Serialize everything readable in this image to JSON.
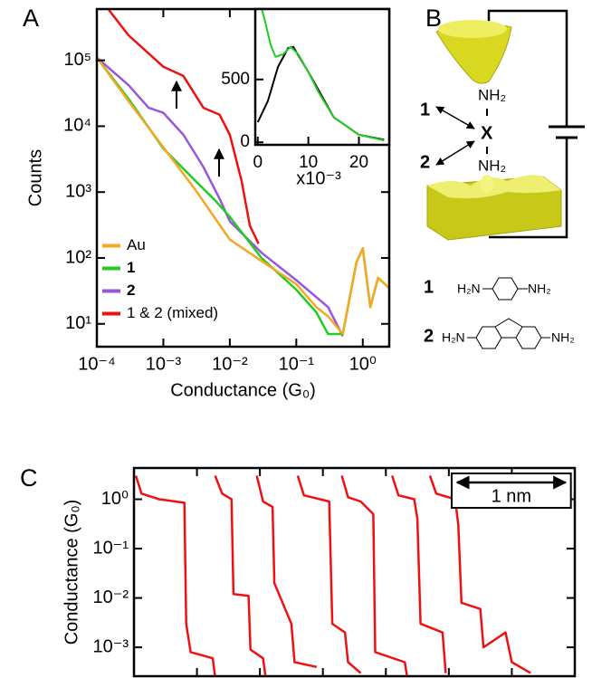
{
  "chart_data": [
    {
      "type": "line",
      "panel_label": "A",
      "xlabel": "Conductance (G₀)",
      "ylabel": "Counts",
      "xscale": "log",
      "yscale": "log",
      "xlim": [
        0.0001,
        2.5
      ],
      "ylim": [
        4.5,
        600000
      ],
      "xticks": [
        {
          "value": 0.0001,
          "label": "10⁻⁴"
        },
        {
          "value": 0.001,
          "label": "10⁻³"
        },
        {
          "value": 0.01,
          "label": "10⁻²"
        },
        {
          "value": 0.1,
          "label": "10⁻¹"
        },
        {
          "value": 1,
          "label": "10⁰"
        }
      ],
      "yticks": [
        {
          "value": 10,
          "label": "10¹"
        },
        {
          "value": 100,
          "label": "10²"
        },
        {
          "value": 1000,
          "label": "10³"
        },
        {
          "value": 10000,
          "label": "10⁴"
        },
        {
          "value": 100000,
          "label": "10⁵"
        }
      ],
      "legend": "lower left",
      "series": [
        {
          "name": "Au",
          "color": "#f5a623",
          "x": [
            0.0001,
            0.0003,
            0.001,
            0.003,
            0.01,
            0.03,
            0.1,
            0.2,
            0.3,
            0.5,
            0.8,
            1,
            1.3,
            1.7,
            2.5
          ],
          "values": [
            110000,
            24000,
            4800,
            1100,
            190,
            90,
            40,
            18,
            13,
            7,
            85,
            140,
            18,
            50,
            35
          ]
        },
        {
          "name": "1",
          "color": "#22cc22",
          "x": [
            0.0001,
            0.0003,
            0.001,
            0.003,
            0.006,
            0.01,
            0.03,
            0.1,
            0.2,
            0.3,
            0.5,
            0.8,
            1,
            1.3,
            1.7,
            2.5
          ],
          "values": [
            110000,
            26000,
            4600,
            1500,
            750,
            420,
            100,
            33,
            15,
            7,
            7,
            85,
            140,
            18,
            50,
            35
          ]
        },
        {
          "name": "2",
          "color": "#9955dd",
          "x": [
            0.0001,
            0.0003,
            0.0006,
            0.001,
            0.002,
            0.004,
            0.007,
            0.01,
            0.03,
            0.1,
            0.3,
            0.5
          ],
          "values": [
            110000,
            42000,
            19000,
            16000,
            7400,
            2400,
            800,
            360,
            120,
            46,
            18,
            6.5
          ]
        },
        {
          "name": "1 & 2 (mixed)",
          "color": "#ee1111",
          "x": [
            0.00015,
            0.0003,
            0.001,
            0.002,
            0.004,
            0.007,
            0.01,
            0.015,
            0.02,
            0.027
          ],
          "values": [
            590000,
            240000,
            80000,
            58000,
            19000,
            15000,
            7400,
            1500,
            310,
            165
          ]
        }
      ]
    },
    {
      "type": "line",
      "inset": true,
      "xlabel": "x10⁻³",
      "xlim": [
        -0.5,
        26
      ],
      "ylim": [
        -20,
        1060
      ],
      "xticks": [
        0,
        10,
        20
      ],
      "yticks": [
        0,
        500
      ],
      "series": [
        {
          "color": "#22cc22",
          "x": [
            0.8,
            1.5,
            2.5,
            3.5,
            5,
            6.5,
            8,
            10,
            12,
            15,
            20,
            25
          ],
          "values": [
            1060,
            950,
            780,
            680,
            700,
            760,
            700,
            560,
            400,
            200,
            60,
            15
          ]
        },
        {
          "color": "#000000",
          "x": [
            0,
            2,
            4,
            6,
            7,
            10,
            15,
            20,
            25
          ],
          "values": [
            160,
            330,
            600,
            750,
            760,
            560,
            200,
            60,
            20
          ]
        }
      ]
    },
    {
      "type": "line",
      "panel_label": "C",
      "ylabel": "Conductance (G₀)",
      "yscale": "log",
      "xlim": [
        0,
        7
      ],
      "ylim": [
        0.00026,
        4.3
      ],
      "xticks": [
        1,
        2,
        3,
        4,
        5,
        6
      ],
      "xtick_labels": false,
      "yticks": [
        {
          "value": 0.001,
          "label": "10⁻³"
        },
        {
          "value": 0.01,
          "label": "10⁻²"
        },
        {
          "value": 0.1,
          "label": "10⁻¹"
        },
        {
          "value": 1,
          "label": "10⁰"
        }
      ],
      "scale_bar": {
        "label": "1 nm",
        "length": 1.72
      },
      "series": [
        {
          "color": "#ee1111",
          "x": [
            0.03,
            0.12,
            0.4,
            0.8,
            0.83,
            0.9,
            1.25,
            1.3
          ],
          "values": [
            3,
            1.3,
            1.0,
            0.85,
            0.003,
            0.0008,
            0.0006,
            0.0002
          ]
        },
        {
          "color": "#ee1111",
          "x": [
            1.29,
            1.4,
            1.55,
            1.58,
            1.82,
            1.85,
            2.05,
            2.1
          ],
          "values": [
            3,
            1.3,
            1.0,
            0.012,
            0.011,
            0.0009,
            0.0006,
            0.0002
          ]
        },
        {
          "color": "#ee1111",
          "x": [
            1.95,
            2.05,
            2.2,
            2.23,
            2.5,
            2.55,
            2.9
          ],
          "values": [
            3,
            0.9,
            0.7,
            0.02,
            0.003,
            0.0005,
            0.0004
          ]
        },
        {
          "color": "#ee1111",
          "x": [
            2.6,
            2.7,
            3.1,
            3.15,
            3.35,
            3.4,
            3.6
          ],
          "values": [
            3,
            1.2,
            0.9,
            0.003,
            0.002,
            0.0005,
            0.0003
          ]
        },
        {
          "color": "#ee1111",
          "x": [
            3.3,
            3.4,
            3.6,
            3.8,
            3.83,
            4.3,
            4.35
          ],
          "values": [
            3,
            1.1,
            0.9,
            0.5,
            0.0008,
            0.0005,
            0.0002
          ]
        },
        {
          "color": "#ee1111",
          "x": [
            4.1,
            4.2,
            4.45,
            4.5,
            4.55,
            4.9,
            4.95
          ],
          "values": [
            3,
            1.2,
            1.0,
            0.4,
            0.003,
            0.002,
            0.0003
          ]
        },
        {
          "color": "#ee1111",
          "x": [
            4.7,
            4.8,
            5.1,
            5.15,
            5.2,
            5.5,
            5.55,
            5.9,
            6.0,
            6.3
          ],
          "values": [
            3,
            1.3,
            1.0,
            0.3,
            0.008,
            0.006,
            0.001,
            0.002,
            0.0005,
            0.0003
          ]
        }
      ]
    }
  ],
  "diagram": {
    "panel_label": "B",
    "amine_top": "NH₂",
    "linker": "X",
    "amine_bottom": "NH₂",
    "pointer_1": "1",
    "pointer_2": "2",
    "molecules": [
      {
        "number": "1",
        "left": "H₂N",
        "right": "NH₂"
      },
      {
        "number": "2",
        "left": "H₂N",
        "right": "NH₂"
      }
    ]
  }
}
